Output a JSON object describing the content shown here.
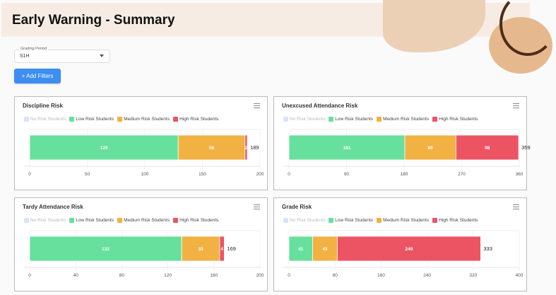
{
  "header": {
    "title": "Early Warning - Summary"
  },
  "filters": {
    "grading_period_label": "Grading Period",
    "grading_period_value": "S1H",
    "add_filters_label": "+  Add Filters"
  },
  "legend": [
    {
      "label": "No Risk Students",
      "color": "#d9e4f8",
      "muted": true
    },
    {
      "label": "Low Risk Students",
      "color": "#66e09c"
    },
    {
      "label": "Medium Risk Students",
      "color": "#f2b143"
    },
    {
      "label": "High Risk Students",
      "color": "#ec5464"
    }
  ],
  "chart_data": [
    {
      "type": "bar",
      "stacked": true,
      "orientation": "horizontal",
      "title": "Discipline Risk",
      "series": [
        {
          "name": "No Risk Students",
          "values": [
            0
          ]
        },
        {
          "name": "Low Risk Students",
          "values": [
            129
          ]
        },
        {
          "name": "Medium Risk Students",
          "values": [
            58
          ]
        },
        {
          "name": "High Risk Students",
          "values": [
            2
          ]
        }
      ],
      "total": 189,
      "xlim": [
        0,
        200
      ],
      "xticks": [
        0,
        50,
        100,
        150,
        200
      ]
    },
    {
      "type": "bar",
      "stacked": true,
      "orientation": "horizontal",
      "title": "Unexcused Attendance Risk",
      "series": [
        {
          "name": "No Risk Students",
          "values": [
            0
          ]
        },
        {
          "name": "Low Risk Students",
          "values": [
            181
          ]
        },
        {
          "name": "Medium Risk Students",
          "values": [
            80
          ]
        },
        {
          "name": "High Risk Students",
          "values": [
            98
          ]
        }
      ],
      "total": 359,
      "xlim": [
        0,
        360
      ],
      "xticks": [
        0,
        90,
        180,
        270,
        360
      ]
    },
    {
      "type": "bar",
      "stacked": true,
      "orientation": "horizontal",
      "title": "Tardy Attendance Risk",
      "series": [
        {
          "name": "No Risk Students",
          "values": [
            0
          ]
        },
        {
          "name": "Low Risk Students",
          "values": [
            132
          ]
        },
        {
          "name": "Medium Risk Students",
          "values": [
            33
          ]
        },
        {
          "name": "High Risk Students",
          "values": [
            4
          ]
        }
      ],
      "total": 169,
      "xlim": [
        0,
        200
      ],
      "xticks": [
        0,
        40,
        80,
        120,
        160,
        200
      ]
    },
    {
      "type": "bar",
      "stacked": true,
      "orientation": "horizontal",
      "title": "Grade Risk",
      "series": [
        {
          "name": "No Risk Students",
          "values": [
            0
          ]
        },
        {
          "name": "Low Risk Students",
          "values": [
            41
          ]
        },
        {
          "name": "Medium Risk Students",
          "values": [
            43
          ]
        },
        {
          "name": "High Risk Students",
          "values": [
            249
          ]
        }
      ],
      "total": 333,
      "xlim": [
        0,
        400
      ],
      "xticks": [
        0,
        80,
        160,
        240,
        320,
        400
      ]
    }
  ]
}
